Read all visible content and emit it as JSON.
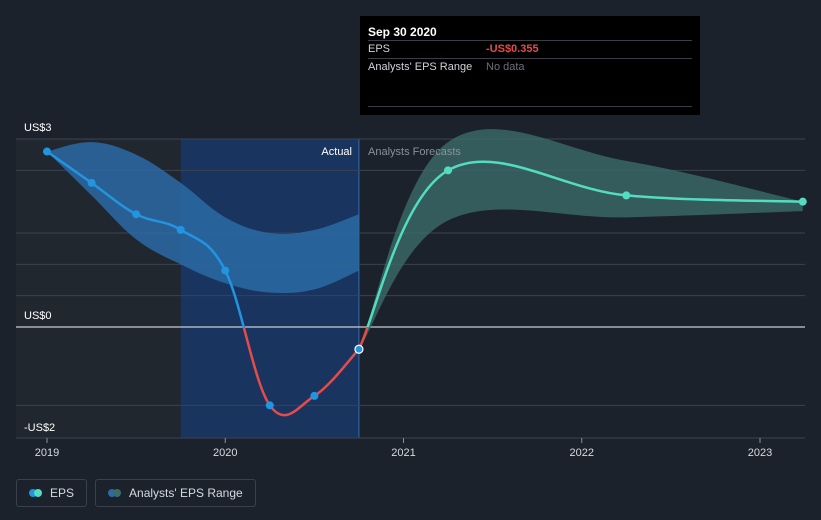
{
  "chart_data": {
    "type": "line",
    "title": "EPS",
    "y_axis": {
      "unit_labels": [
        "US$3",
        "US$0",
        "-US$2"
      ],
      "ylim": [
        -2,
        3
      ],
      "gridlines": [
        3,
        2.5,
        1.5,
        1,
        0.5,
        -1.25
      ]
    },
    "x_axis": {
      "tick_labels": [
        "2019",
        "2020",
        "2021",
        "2022",
        "2023"
      ],
      "tick_values": [
        2019,
        2020,
        2021,
        2022,
        2023
      ],
      "xlim": [
        2018.98,
        2023.24
      ]
    },
    "region_labels": {
      "actual": "Actual",
      "forecast": "Analysts Forecasts"
    },
    "divider_x": 2020.75,
    "past_shade_start": 2019.75,
    "series": [
      {
        "name": "EPS",
        "kind": "actual",
        "x": [
          2019.0,
          2019.25,
          2019.5,
          2019.75,
          2020.0,
          2020.25,
          2020.5,
          2020.75
        ],
        "y": [
          2.8,
          2.3,
          1.8,
          1.55,
          0.9,
          -1.25,
          -1.1,
          -0.355
        ]
      },
      {
        "name": "EPS",
        "kind": "forecast",
        "x": [
          2020.75,
          2021.25,
          2022.25,
          2023.24
        ],
        "y": [
          -0.355,
          2.5,
          2.1,
          2.0
        ]
      }
    ],
    "ranges": [
      {
        "name": "Analysts' EPS Range (past)",
        "x": [
          2019.0,
          2019.25,
          2019.5,
          2019.75,
          2020.0,
          2020.25,
          2020.5,
          2020.75
        ],
        "low": [
          2.8,
          2.1,
          1.4,
          1.0,
          0.7,
          0.55,
          0.6,
          0.9
        ],
        "high": [
          2.8,
          2.95,
          2.75,
          2.3,
          1.75,
          1.5,
          1.55,
          1.8
        ]
      },
      {
        "name": "Analysts' EPS Range (forecast)",
        "x": [
          2020.75,
          2021.25,
          2022.25,
          2023.24
        ],
        "low": [
          -0.355,
          1.7,
          1.75,
          1.85
        ],
        "high": [
          -0.355,
          2.95,
          2.65,
          2.0
        ]
      }
    ],
    "colors": {
      "eps_positive": "#2394df",
      "eps_negative": "#e64b4b",
      "forecast_line": "#54dcc0",
      "forecast_range": "#3b6c6a",
      "past_range": "#2b6aa4",
      "actual_bg": "#19355f"
    }
  },
  "tooltip": {
    "date": "Sep 30 2020",
    "rows": [
      {
        "label": "EPS",
        "value": "-US$0.355"
      },
      {
        "label": "Analysts' EPS Range",
        "value": "No data"
      }
    ]
  },
  "legend": {
    "items": [
      {
        "label": "EPS",
        "colors": [
          "#2394df",
          "#54dcc0"
        ]
      },
      {
        "label": "Analysts' EPS Range",
        "colors": [
          "#2b6aa4",
          "#3b6c6a"
        ]
      }
    ]
  }
}
